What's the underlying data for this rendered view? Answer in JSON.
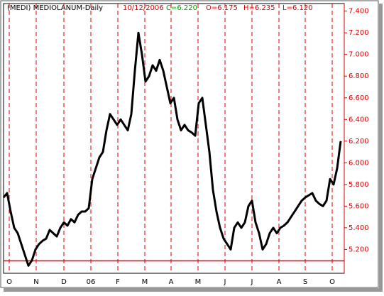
{
  "chart_data": {
    "type": "line",
    "header": {
      "title": "(MEDI) MEDIOLANUM-Daily",
      "date": "10/12/2006",
      "close": "C=6.220",
      "open": "O=6.175",
      "high": "H=6.235",
      "low": "L=6.120"
    },
    "x": [
      0,
      1,
      2,
      3,
      4,
      5,
      6,
      7,
      8,
      9,
      10,
      11,
      12,
      13,
      14,
      15,
      16,
      17,
      18,
      19,
      20,
      21,
      22,
      23,
      24,
      25,
      26,
      27,
      28,
      29,
      30,
      31,
      32,
      33,
      34,
      35,
      36,
      37,
      38,
      39,
      40,
      41,
      42,
      43,
      44,
      45,
      46,
      47,
      48,
      49,
      50,
      51,
      52,
      53,
      54,
      55,
      56,
      57,
      58,
      59,
      60,
      61,
      62,
      63,
      64,
      65,
      66,
      67,
      68,
      69,
      70,
      71,
      72,
      73,
      74,
      75,
      76,
      77,
      78,
      79,
      80,
      81,
      82,
      83,
      84,
      85,
      86,
      87,
      88,
      89,
      90,
      91,
      92,
      93,
      94,
      95
    ],
    "series": [
      {
        "color": "#000000",
        "values": [
          5.68,
          5.72,
          5.55,
          5.4,
          5.35,
          5.25,
          5.15,
          5.05,
          5.1,
          5.2,
          5.25,
          5.28,
          5.3,
          5.38,
          5.35,
          5.32,
          5.4,
          5.45,
          5.42,
          5.48,
          5.45,
          5.52,
          5.55,
          5.55,
          5.58,
          5.85,
          5.95,
          6.05,
          6.1,
          6.3,
          6.45,
          6.4,
          6.35,
          6.4,
          6.35,
          6.3,
          6.45,
          6.85,
          7.2,
          7.0,
          6.75,
          6.8,
          6.9,
          6.85,
          6.95,
          6.85,
          6.7,
          6.55,
          6.6,
          6.4,
          6.3,
          6.35,
          6.3,
          6.28,
          6.25,
          6.55,
          6.6,
          6.35,
          6.1,
          5.75,
          5.55,
          5.4,
          5.3,
          5.25,
          5.2,
          5.4,
          5.45,
          5.4,
          5.45,
          5.6,
          5.65,
          5.45,
          5.35,
          5.2,
          5.25,
          5.35,
          5.4,
          5.35,
          5.4,
          5.42,
          5.45,
          5.5,
          5.55,
          5.6,
          5.65,
          5.68,
          5.7,
          5.72,
          5.65,
          5.62,
          5.6,
          5.65,
          5.85,
          5.8,
          5.95,
          6.2
        ]
      }
    ],
    "xlim": [
      0,
      96
    ],
    "xticks": [
      {
        "value": 1.6,
        "label": "O"
      },
      {
        "value": 9.2,
        "label": "N"
      },
      {
        "value": 17,
        "label": "D"
      },
      {
        "value": 24.6,
        "label": "06"
      },
      {
        "value": 32.2,
        "label": "F"
      },
      {
        "value": 39.8,
        "label": "M"
      },
      {
        "value": 47.2,
        "label": "A"
      },
      {
        "value": 54.8,
        "label": "M"
      },
      {
        "value": 62.4,
        "label": "J"
      },
      {
        "value": 70,
        "label": "J"
      },
      {
        "value": 77.6,
        "label": "A"
      },
      {
        "value": 85,
        "label": "S"
      },
      {
        "value": 92.6,
        "label": "O"
      }
    ],
    "ylim": [
      4.98,
      7.47
    ],
    "yticks": [
      {
        "value": 5.2,
        "label": "5.200"
      },
      {
        "value": 5.4,
        "label": "5.400"
      },
      {
        "value": 5.6,
        "label": "5.600"
      },
      {
        "value": 5.8,
        "label": "5.800"
      },
      {
        "value": 6.0,
        "label": "6.000"
      },
      {
        "value": 6.2,
        "label": "6.200"
      },
      {
        "value": 6.4,
        "label": "6.400"
      },
      {
        "value": 6.6,
        "label": "6.600"
      },
      {
        "value": 6.8,
        "label": "6.800"
      },
      {
        "value": 7.0,
        "label": "7.000"
      },
      {
        "value": 7.2,
        "label": "7.200"
      },
      {
        "value": 7.4,
        "label": "7.400"
      }
    ],
    "hline": 5.095,
    "grid_color": "#e00000"
  }
}
